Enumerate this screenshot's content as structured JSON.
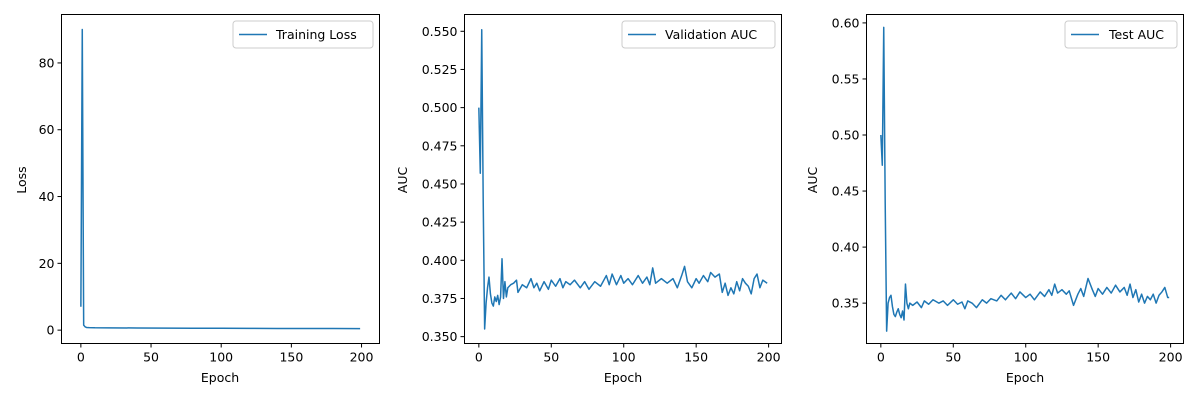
{
  "chart_data": [
    {
      "type": "line",
      "title": "",
      "xlabel": "Epoch",
      "ylabel": "Loss",
      "xlim": [
        -13.8,
        212.8
      ],
      "ylim": [
        -4.0,
        94.5
      ],
      "xticks": [
        0,
        50,
        100,
        150,
        200
      ],
      "yticks": [
        0,
        20,
        40,
        60,
        80
      ],
      "grid": false,
      "legend": "upper right",
      "series": [
        {
          "name": "Training Loss",
          "color": "#1f77b4",
          "points": [
            [
              0,
              7.0
            ],
            [
              1,
              90.0
            ],
            [
              2,
              1.5
            ],
            [
              3,
              1.0
            ],
            [
              4,
              0.8
            ],
            [
              6,
              0.75
            ],
            [
              10,
              0.7
            ],
            [
              20,
              0.68
            ],
            [
              40,
              0.65
            ],
            [
              60,
              0.6
            ],
            [
              80,
              0.58
            ],
            [
              100,
              0.55
            ],
            [
              120,
              0.52
            ],
            [
              140,
              0.5
            ],
            [
              160,
              0.5
            ],
            [
              180,
              0.48
            ],
            [
              199,
              0.47
            ]
          ]
        }
      ]
    },
    {
      "type": "line",
      "title": "",
      "xlabel": "Epoch",
      "ylabel": "AUC",
      "xlim": [
        -9.9,
        208.9
      ],
      "ylim": [
        0.3455,
        0.561
      ],
      "xticks": [
        0,
        50,
        100,
        150,
        200
      ],
      "yticks": [
        0.35,
        0.375,
        0.4,
        0.425,
        0.45,
        0.475,
        0.5,
        0.525,
        0.55
      ],
      "grid": false,
      "legend": "upper right",
      "series": [
        {
          "name": "Validation AUC",
          "color": "#1f77b4",
          "points": [
            [
              0,
              0.5
            ],
            [
              1,
              0.457
            ],
            [
              2,
              0.551
            ],
            [
              3,
              0.44
            ],
            [
              4,
              0.355
            ],
            [
              5,
              0.372
            ],
            [
              6,
              0.382
            ],
            [
              7,
              0.389
            ],
            [
              8,
              0.378
            ],
            [
              9,
              0.372
            ],
            [
              10,
              0.37
            ],
            [
              11,
              0.376
            ],
            [
              12,
              0.373
            ],
            [
              13,
              0.377
            ],
            [
              14,
              0.371
            ],
            [
              15,
              0.376
            ],
            [
              16,
              0.401
            ],
            [
              17,
              0.375
            ],
            [
              18,
              0.386
            ],
            [
              19,
              0.376
            ],
            [
              20,
              0.382
            ],
            [
              22,
              0.384
            ],
            [
              24,
              0.385
            ],
            [
              26,
              0.387
            ],
            [
              27,
              0.379
            ],
            [
              30,
              0.384
            ],
            [
              33,
              0.382
            ],
            [
              36,
              0.388
            ],
            [
              38,
              0.382
            ],
            [
              40,
              0.385
            ],
            [
              42,
              0.38
            ],
            [
              45,
              0.386
            ],
            [
              48,
              0.381
            ],
            [
              50,
              0.387
            ],
            [
              53,
              0.383
            ],
            [
              56,
              0.388
            ],
            [
              58,
              0.382
            ],
            [
              60,
              0.386
            ],
            [
              63,
              0.384
            ],
            [
              66,
              0.387
            ],
            [
              70,
              0.382
            ],
            [
              73,
              0.386
            ],
            [
              76,
              0.381
            ],
            [
              80,
              0.386
            ],
            [
              84,
              0.383
            ],
            [
              88,
              0.39
            ],
            [
              90,
              0.384
            ],
            [
              92,
              0.391
            ],
            [
              95,
              0.384
            ],
            [
              98,
              0.39
            ],
            [
              100,
              0.385
            ],
            [
              103,
              0.388
            ],
            [
              106,
              0.384
            ],
            [
              110,
              0.39
            ],
            [
              113,
              0.385
            ],
            [
              116,
              0.389
            ],
            [
              118,
              0.384
            ],
            [
              120,
              0.395
            ],
            [
              122,
              0.385
            ],
            [
              126,
              0.388
            ],
            [
              130,
              0.385
            ],
            [
              134,
              0.388
            ],
            [
              137,
              0.382
            ],
            [
              140,
              0.39
            ],
            [
              142,
              0.396
            ],
            [
              144,
              0.386
            ],
            [
              147,
              0.382
            ],
            [
              150,
              0.388
            ],
            [
              152,
              0.385
            ],
            [
              155,
              0.39
            ],
            [
              158,
              0.386
            ],
            [
              160,
              0.392
            ],
            [
              163,
              0.389
            ],
            [
              166,
              0.391
            ],
            [
              168,
              0.379
            ],
            [
              170,
              0.385
            ],
            [
              172,
              0.377
            ],
            [
              174,
              0.382
            ],
            [
              176,
              0.378
            ],
            [
              178,
              0.386
            ],
            [
              180,
              0.38
            ],
            [
              182,
              0.388
            ],
            [
              184,
              0.385
            ],
            [
              186,
              0.383
            ],
            [
              188,
              0.378
            ],
            [
              190,
              0.388
            ],
            [
              192,
              0.391
            ],
            [
              194,
              0.382
            ],
            [
              196,
              0.387
            ],
            [
              199,
              0.385
            ]
          ]
        }
      ]
    },
    {
      "type": "line",
      "title": "",
      "xlabel": "Epoch",
      "ylabel": "AUC",
      "xlim": [
        -9.9,
        208.9
      ],
      "ylim": [
        0.314,
        0.6075
      ],
      "xticks": [
        0,
        50,
        100,
        150,
        200
      ],
      "yticks": [
        0.35,
        0.4,
        0.45,
        0.5,
        0.55,
        0.6
      ],
      "grid": false,
      "legend": "upper right",
      "series": [
        {
          "name": "Test AUC",
          "color": "#1f77b4",
          "points": [
            [
              0,
              0.5
            ],
            [
              1,
              0.473
            ],
            [
              2,
              0.596
            ],
            [
              3,
              0.44
            ],
            [
              4,
              0.325
            ],
            [
              5,
              0.35
            ],
            [
              6,
              0.355
            ],
            [
              7,
              0.357
            ],
            [
              8,
              0.347
            ],
            [
              9,
              0.34
            ],
            [
              10,
              0.338
            ],
            [
              11,
              0.342
            ],
            [
              12,
              0.345
            ],
            [
              13,
              0.34
            ],
            [
              14,
              0.337
            ],
            [
              15,
              0.343
            ],
            [
              16,
              0.335
            ],
            [
              17,
              0.367
            ],
            [
              18,
              0.35
            ],
            [
              19,
              0.345
            ],
            [
              20,
              0.35
            ],
            [
              22,
              0.348
            ],
            [
              25,
              0.351
            ],
            [
              28,
              0.346
            ],
            [
              30,
              0.352
            ],
            [
              33,
              0.349
            ],
            [
              36,
              0.353
            ],
            [
              40,
              0.35
            ],
            [
              43,
              0.352
            ],
            [
              46,
              0.348
            ],
            [
              50,
              0.353
            ],
            [
              53,
              0.349
            ],
            [
              56,
              0.351
            ],
            [
              58,
              0.345
            ],
            [
              60,
              0.352
            ],
            [
              63,
              0.35
            ],
            [
              66,
              0.346
            ],
            [
              70,
              0.353
            ],
            [
              73,
              0.35
            ],
            [
              76,
              0.354
            ],
            [
              80,
              0.352
            ],
            [
              83,
              0.357
            ],
            [
              86,
              0.353
            ],
            [
              90,
              0.359
            ],
            [
              93,
              0.354
            ],
            [
              96,
              0.36
            ],
            [
              100,
              0.355
            ],
            [
              103,
              0.358
            ],
            [
              106,
              0.353
            ],
            [
              110,
              0.36
            ],
            [
              113,
              0.356
            ],
            [
              116,
              0.362
            ],
            [
              118,
              0.357
            ],
            [
              120,
              0.367
            ],
            [
              122,
              0.359
            ],
            [
              125,
              0.362
            ],
            [
              128,
              0.358
            ],
            [
              130,
              0.361
            ],
            [
              133,
              0.348
            ],
            [
              136,
              0.358
            ],
            [
              138,
              0.363
            ],
            [
              140,
              0.356
            ],
            [
              143,
              0.372
            ],
            [
              146,
              0.362
            ],
            [
              148,
              0.356
            ],
            [
              150,
              0.363
            ],
            [
              153,
              0.358
            ],
            [
              156,
              0.364
            ],
            [
              159,
              0.359
            ],
            [
              162,
              0.366
            ],
            [
              165,
              0.36
            ],
            [
              168,
              0.364
            ],
            [
              170,
              0.357
            ],
            [
              172,
              0.367
            ],
            [
              174,
              0.355
            ],
            [
              176,
              0.362
            ],
            [
              178,
              0.351
            ],
            [
              180,
              0.358
            ],
            [
              182,
              0.35
            ],
            [
              184,
              0.356
            ],
            [
              186,
              0.353
            ],
            [
              188,
              0.358
            ],
            [
              190,
              0.35
            ],
            [
              192,
              0.357
            ],
            [
              194,
              0.36
            ],
            [
              196,
              0.364
            ],
            [
              198,
              0.355
            ],
            [
              199,
              0.355
            ]
          ]
        }
      ]
    }
  ]
}
